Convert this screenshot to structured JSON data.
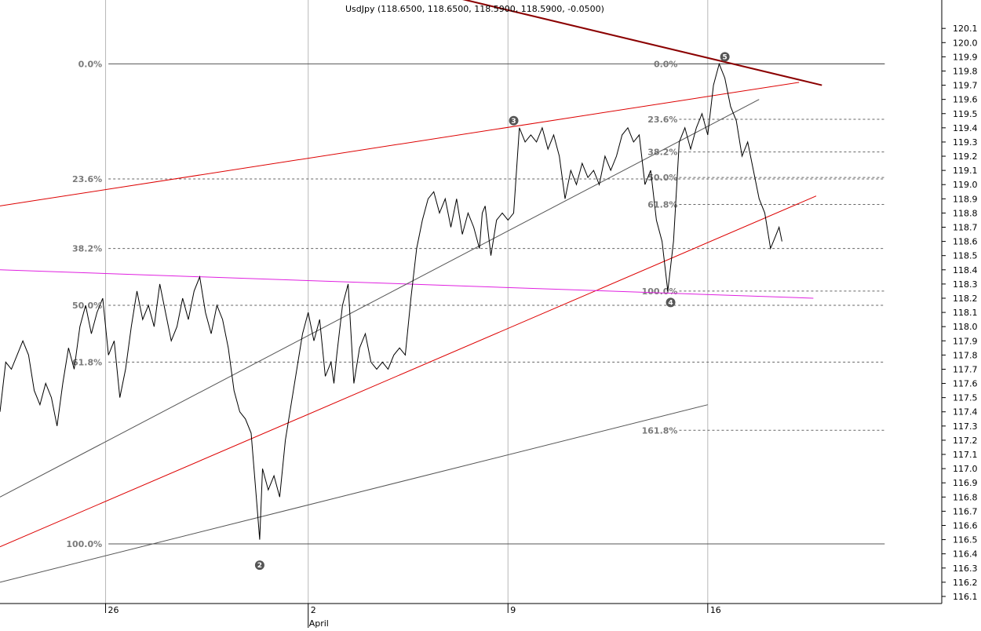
{
  "title": "UsdJpy (118.6500, 118.6500, 118.5900, 118.5900, -0.0500)",
  "chart_data": {
    "type": "line",
    "title": "UsdJpy (118.6500, 118.6500, 118.5900, 118.5900, -0.0500)",
    "ylim": [
      116.05,
      120.3
    ],
    "y_ticks": [
      "120.1",
      "120.0",
      "119.9",
      "119.8",
      "119.7",
      "119.6",
      "119.5",
      "119.4",
      "119.3",
      "119.2",
      "119.1",
      "119.0",
      "118.9",
      "118.8",
      "118.7",
      "118.6",
      "118.5",
      "118.4",
      "118.3",
      "118.2",
      "118.1",
      "118.0",
      "117.9",
      "117.8",
      "117.7",
      "117.6",
      "117.5",
      "117.4",
      "117.3",
      "117.2",
      "117.1",
      "117.0",
      "116.9",
      "116.8",
      "116.7",
      "116.6",
      "116.5",
      "116.4",
      "116.3",
      "116.2",
      "116.1"
    ],
    "y_tick_values": [
      120.1,
      120.0,
      119.9,
      119.8,
      119.7,
      119.6,
      119.5,
      119.4,
      119.3,
      119.2,
      119.1,
      119.0,
      118.9,
      118.8,
      118.7,
      118.6,
      118.5,
      118.4,
      118.3,
      118.2,
      118.1,
      118.0,
      117.9,
      117.8,
      117.7,
      117.6,
      117.5,
      117.4,
      117.3,
      117.2,
      117.1,
      117.0,
      116.9,
      116.8,
      116.7,
      116.6,
      116.5,
      116.4,
      116.3,
      116.2,
      116.1
    ],
    "x_ticks": [
      {
        "label": "26",
        "t": 27
      },
      {
        "label": "2",
        "t": 98
      },
      {
        "label": "9",
        "t": 168
      },
      {
        "label": "16",
        "t": 238
      }
    ],
    "x_month_label": {
      "label": "April",
      "t": 98
    },
    "xlim": [
      -10,
      320
    ],
    "grid": "vertical-at-dates",
    "price_series": [
      [
        -10,
        117.4
      ],
      [
        -8,
        117.75
      ],
      [
        -6,
        117.7
      ],
      [
        -4,
        117.8
      ],
      [
        -2,
        117.9
      ],
      [
        0,
        117.8
      ],
      [
        2,
        117.55
      ],
      [
        4,
        117.45
      ],
      [
        6,
        117.6
      ],
      [
        8,
        117.5
      ],
      [
        10,
        117.3
      ],
      [
        12,
        117.6
      ],
      [
        14,
        117.85
      ],
      [
        16,
        117.7
      ],
      [
        18,
        118.0
      ],
      [
        20,
        118.15
      ],
      [
        22,
        117.95
      ],
      [
        24,
        118.1
      ],
      [
        26,
        118.2
      ],
      [
        28,
        117.8
      ],
      [
        30,
        117.9
      ],
      [
        32,
        117.5
      ],
      [
        34,
        117.7
      ],
      [
        36,
        118.0
      ],
      [
        38,
        118.25
      ],
      [
        40,
        118.05
      ],
      [
        42,
        118.15
      ],
      [
        44,
        118.0
      ],
      [
        46,
        118.3
      ],
      [
        48,
        118.1
      ],
      [
        50,
        117.9
      ],
      [
        52,
        118.0
      ],
      [
        54,
        118.2
      ],
      [
        56,
        118.05
      ],
      [
        58,
        118.25
      ],
      [
        60,
        118.35
      ],
      [
        62,
        118.1
      ],
      [
        64,
        117.95
      ],
      [
        66,
        118.15
      ],
      [
        68,
        118.05
      ],
      [
        70,
        117.85
      ],
      [
        72,
        117.55
      ],
      [
        74,
        117.4
      ],
      [
        76,
        117.35
      ],
      [
        78,
        117.25
      ],
      [
        80,
        116.75
      ],
      [
        81,
        116.5
      ],
      [
        82,
        117.0
      ],
      [
        84,
        116.85
      ],
      [
        86,
        116.95
      ],
      [
        88,
        116.8
      ],
      [
        90,
        117.2
      ],
      [
        92,
        117.45
      ],
      [
        94,
        117.7
      ],
      [
        96,
        117.95
      ],
      [
        98,
        118.1
      ],
      [
        100,
        117.9
      ],
      [
        102,
        118.05
      ],
      [
        104,
        117.65
      ],
      [
        106,
        117.75
      ],
      [
        107,
        117.6
      ],
      [
        108,
        117.8
      ],
      [
        110,
        118.15
      ],
      [
        112,
        118.3
      ],
      [
        114,
        117.6
      ],
      [
        116,
        117.85
      ],
      [
        118,
        117.95
      ],
      [
        120,
        117.75
      ],
      [
        122,
        117.7
      ],
      [
        124,
        117.75
      ],
      [
        126,
        117.7
      ],
      [
        128,
        117.8
      ],
      [
        130,
        117.85
      ],
      [
        132,
        117.8
      ],
      [
        134,
        118.2
      ],
      [
        136,
        118.55
      ],
      [
        138,
        118.75
      ],
      [
        140,
        118.9
      ],
      [
        142,
        118.95
      ],
      [
        144,
        118.8
      ],
      [
        146,
        118.9
      ],
      [
        148,
        118.7
      ],
      [
        150,
        118.9
      ],
      [
        152,
        118.65
      ],
      [
        154,
        118.8
      ],
      [
        156,
        118.7
      ],
      [
        158,
        118.55
      ],
      [
        159,
        118.8
      ],
      [
        160,
        118.85
      ],
      [
        162,
        118.5
      ],
      [
        164,
        118.75
      ],
      [
        166,
        118.8
      ],
      [
        168,
        118.75
      ],
      [
        170,
        118.8
      ],
      [
        172,
        119.4
      ],
      [
        174,
        119.3
      ],
      [
        176,
        119.35
      ],
      [
        178,
        119.3
      ],
      [
        180,
        119.4
      ],
      [
        182,
        119.25
      ],
      [
        184,
        119.35
      ],
      [
        186,
        119.2
      ],
      [
        188,
        118.9
      ],
      [
        190,
        119.1
      ],
      [
        192,
        119.0
      ],
      [
        194,
        119.15
      ],
      [
        196,
        119.05
      ],
      [
        198,
        119.1
      ],
      [
        200,
        119.0
      ],
      [
        202,
        119.2
      ],
      [
        204,
        119.1
      ],
      [
        206,
        119.2
      ],
      [
        208,
        119.35
      ],
      [
        210,
        119.4
      ],
      [
        212,
        119.3
      ],
      [
        214,
        119.35
      ],
      [
        216,
        119.0
      ],
      [
        218,
        119.1
      ],
      [
        220,
        118.75
      ],
      [
        222,
        118.6
      ],
      [
        224,
        118.25
      ],
      [
        226,
        118.6
      ],
      [
        228,
        119.3
      ],
      [
        230,
        119.4
      ],
      [
        232,
        119.25
      ],
      [
        234,
        119.4
      ],
      [
        236,
        119.5
      ],
      [
        238,
        119.35
      ],
      [
        240,
        119.7
      ],
      [
        242,
        119.85
      ],
      [
        244,
        119.75
      ],
      [
        246,
        119.55
      ],
      [
        248,
        119.45
      ],
      [
        250,
        119.2
      ],
      [
        252,
        119.3
      ],
      [
        254,
        119.1
      ],
      [
        256,
        118.9
      ],
      [
        258,
        118.8
      ],
      [
        260,
        118.55
      ],
      [
        261,
        118.6
      ],
      [
        262,
        118.65
      ],
      [
        263,
        118.7
      ],
      [
        264,
        118.6
      ]
    ],
    "lines": [
      {
        "name": "upper-red",
        "color": "#dd0000",
        "from": [
          -10,
          118.85
        ],
        "to": [
          270,
          119.72
        ]
      },
      {
        "name": "lower-red",
        "color": "#dd0000",
        "from": [
          -10,
          116.45
        ],
        "to": [
          276,
          118.92
        ]
      },
      {
        "name": "darkred-resistance",
        "color": "#8b0000",
        "from": [
          122,
          120.45
        ],
        "to": [
          278,
          119.7
        ]
      },
      {
        "name": "magenta",
        "color": "#e020e0",
        "from": [
          -10,
          118.4
        ],
        "to": [
          275,
          118.2
        ]
      },
      {
        "name": "black-mid",
        "color": "#555555",
        "from": [
          -10,
          116.8
        ],
        "to": [
          256,
          119.6
        ]
      },
      {
        "name": "black-low",
        "color": "#555555",
        "from": [
          -10,
          116.2
        ],
        "to": [
          238,
          117.45
        ]
      }
    ],
    "fib_set_1": {
      "x_label": 0.0,
      "line_from": 28,
      "line_to": 300,
      "levels": [
        {
          "label": "0.0%",
          "value": 119.85,
          "solid": true
        },
        {
          "label": "23.6%",
          "value": 119.04,
          "solid": false
        },
        {
          "label": "38.2%",
          "value": 118.55,
          "solid": false
        },
        {
          "label": "50.0%",
          "value": 118.15,
          "solid": false
        },
        {
          "label": "61.8%",
          "value": 117.75,
          "solid": false
        },
        {
          "label": "100.0%",
          "value": 116.47,
          "solid": true
        }
      ]
    },
    "fib_set_2": {
      "line_from": 228,
      "line_to": 300,
      "levels": [
        {
          "label": "0.0%",
          "value": 119.85,
          "solid": true
        },
        {
          "label": "23.6%",
          "value": 119.46,
          "solid": false
        },
        {
          "label": "38.2%",
          "value": 119.23,
          "solid": false
        },
        {
          "label": "50.0%",
          "value": 119.05,
          "solid": false
        },
        {
          "label": "61.8%",
          "value": 118.86,
          "solid": false
        },
        {
          "label": "100.0%",
          "value": 118.25,
          "solid": false
        },
        {
          "label": "161.8%",
          "value": 117.27,
          "solid": false
        }
      ]
    },
    "waves": [
      {
        "label": "2",
        "t": 81,
        "value": 116.32
      },
      {
        "label": "3",
        "t": 170,
        "value": 119.45
      },
      {
        "label": "4",
        "t": 225,
        "value": 118.17
      },
      {
        "label": "5",
        "t": 244,
        "value": 119.9
      }
    ]
  }
}
